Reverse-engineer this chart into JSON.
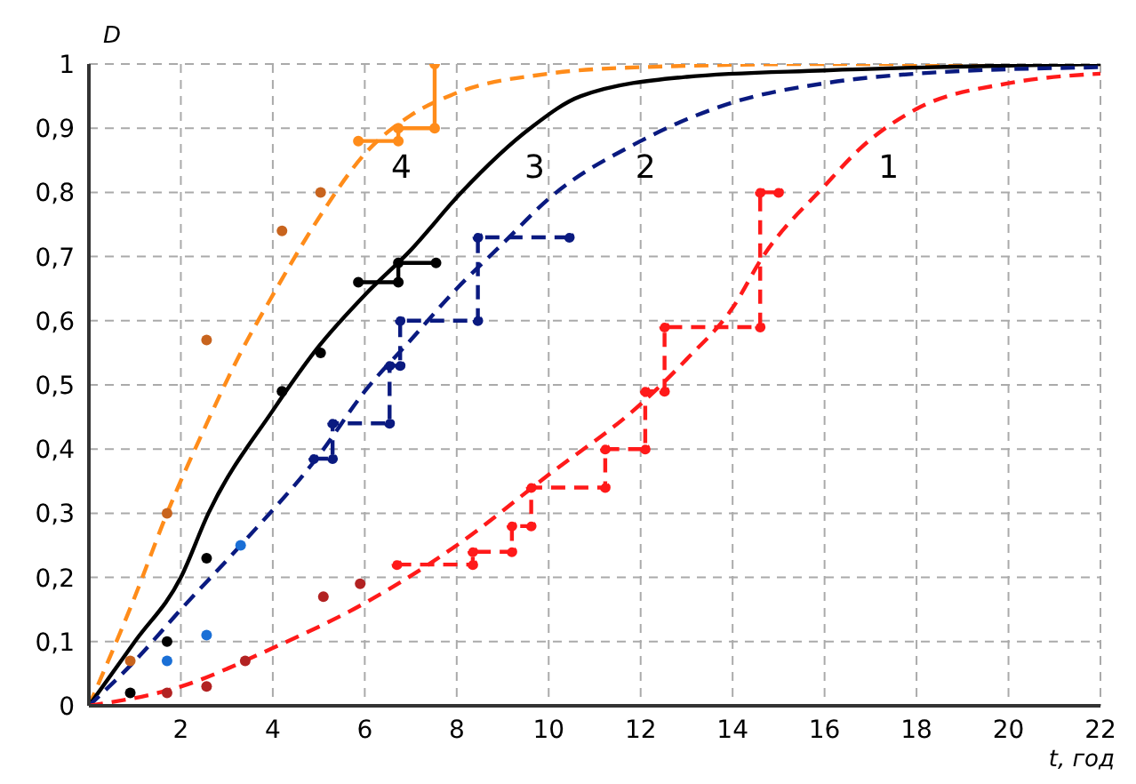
{
  "chart_data": {
    "type": "line",
    "xlabel": "t, год",
    "ylabel": "D",
    "xlim": [
      0,
      22
    ],
    "ylim": [
      0,
      1
    ],
    "xticks": [
      {
        "value": 0,
        "label": null
      },
      2,
      4,
      6,
      8,
      10,
      12,
      14,
      16,
      18,
      20,
      22
    ],
    "yticks": [
      {
        "value": 0,
        "label": "0"
      },
      {
        "value": 0.1,
        "label": "0,1"
      },
      {
        "value": 0.2,
        "label": "0,2"
      },
      {
        "value": 0.3,
        "label": "0,3"
      },
      {
        "value": 0.4,
        "label": "0,4"
      },
      {
        "value": 0.5,
        "label": "0,5"
      },
      {
        "value": 0.6,
        "label": "0,6"
      },
      {
        "value": 0.7,
        "label": "0,7"
      },
      {
        "value": 0.8,
        "label": "0,8"
      },
      {
        "value": 0.9,
        "label": "0,9"
      },
      {
        "value": 1,
        "label": "1"
      }
    ],
    "grid": true,
    "marker": "none",
    "series": [
      {
        "name": "4",
        "color": "#ff8c1a",
        "line_style": "dashed",
        "x": [
          0,
          1,
          1.7,
          2.5,
          3.3,
          4,
          5,
          6,
          7,
          8,
          10,
          12,
          16,
          22
        ],
        "values": [
          0,
          0.17,
          0.3,
          0.43,
          0.55,
          0.64,
          0.76,
          0.86,
          0.92,
          0.955,
          0.985,
          0.995,
          1,
          1
        ]
      },
      {
        "name": "3",
        "color": "#000000",
        "line_style": "solid",
        "x": [
          0,
          1,
          2,
          2.6,
          4,
          5,
          6,
          7,
          8.1,
          9.6,
          10.7,
          13,
          16,
          22
        ],
        "values": [
          0,
          0.1,
          0.2,
          0.3,
          0.46,
          0.56,
          0.64,
          0.71,
          0.8,
          0.9,
          0.95,
          0.98,
          0.99,
          1
        ]
      },
      {
        "name": "2",
        "color": "#0a1a80",
        "line_style": "dashed",
        "x": [
          0,
          1,
          2,
          3.3,
          5,
          6,
          7,
          8,
          9,
          10,
          12,
          14,
          16,
          18,
          22
        ],
        "values": [
          0,
          0.07,
          0.15,
          0.25,
          0.39,
          0.49,
          0.57,
          0.65,
          0.72,
          0.79,
          0.88,
          0.94,
          0.97,
          0.985,
          0.995
        ]
      },
      {
        "name": "1",
        "color": "#ff1a1a",
        "line_style": "dashed",
        "x": [
          0,
          2,
          4,
          6,
          8,
          10,
          12,
          13,
          14,
          14.66,
          16,
          16.8,
          18,
          20,
          22
        ],
        "values": [
          0,
          0.03,
          0.09,
          0.16,
          0.25,
          0.36,
          0.47,
          0.54,
          0.62,
          0.7,
          0.81,
          0.87,
          0.93,
          0.97,
          0.985
        ]
      },
      {
        "type": "line",
        "color": "#ff8c1a",
        "line_style": "solid",
        "marker": "circle",
        "x": [
          5.86,
          6.73,
          6.73,
          7.52,
          7.52
        ],
        "values": [
          0.88,
          0.88,
          0.9,
          0.9,
          1
        ]
      },
      {
        "type": "line",
        "color": "#000000",
        "line_style": "solid",
        "marker": "circle",
        "x": [
          5.86,
          6.73,
          6.73,
          7.55
        ],
        "values": [
          0.66,
          0.66,
          0.69,
          0.69
        ]
      },
      {
        "type": "line",
        "color": "#0a1a80",
        "line_style": "dashed",
        "marker": "circle",
        "x": [
          4.89,
          5.3,
          5.3,
          6.54,
          6.54,
          6.77,
          6.77,
          8.46,
          8.46,
          10.45
        ],
        "values": [
          0.385,
          0.385,
          0.44,
          0.44,
          0.53,
          0.53,
          0.6,
          0.6,
          0.73,
          0.73
        ]
      },
      {
        "type": "line",
        "color": "#ff1a1a",
        "line_style": "dashed",
        "marker": "circle",
        "x": [
          6.7,
          8.35,
          8.35,
          9.2,
          9.2,
          9.62,
          9.62,
          11.23,
          11.23,
          12.1,
          12.1,
          12.52,
          12.52,
          14.6,
          14.6,
          15
        ],
        "values": [
          0.22,
          0.22,
          0.24,
          0.24,
          0.28,
          0.28,
          0.34,
          0.34,
          0.4,
          0.4,
          0.49,
          0.49,
          0.59,
          0.59,
          0.8,
          0.8
        ]
      },
      {
        "type": "scatter",
        "color": "#c8641e",
        "marker": "circle",
        "x": [
          0.9,
          1.7,
          2.56,
          4.2,
          5.04
        ],
        "values": [
          0.07,
          0.3,
          0.57,
          0.74,
          0.8
        ]
      },
      {
        "type": "scatter",
        "color": "#000000",
        "marker": "circle",
        "x": [
          0.9,
          1.7,
          2.56,
          4.2,
          5.04
        ],
        "values": [
          0.02,
          0.1,
          0.23,
          0.49,
          0.55
        ]
      },
      {
        "type": "scatter",
        "color": "#1a6fd6",
        "marker": "circle",
        "x": [
          1.7,
          2.56,
          3.3
        ],
        "values": [
          0.07,
          0.11,
          0.25
        ]
      },
      {
        "type": "scatter",
        "color": "#b22222",
        "marker": "circle",
        "x": [
          1.7,
          2.56,
          3.4,
          5.1,
          5.9
        ],
        "values": [
          0.02,
          0.03,
          0.07,
          0.17,
          0.19
        ]
      }
    ]
  }
}
